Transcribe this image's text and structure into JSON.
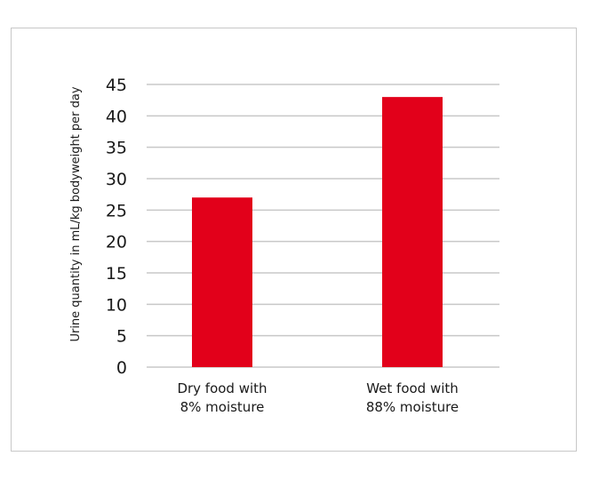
{
  "chart_data": {
    "type": "bar",
    "categories": [
      [
        "Dry food with",
        "8% moisture"
      ],
      [
        "Wet food with",
        "88% moisture"
      ]
    ],
    "values": [
      27,
      43
    ],
    "title": "",
    "xlabel": "",
    "ylabel": "Urine quantity in mL/kg bodyweight per day",
    "ylim": [
      0,
      45
    ],
    "yticks": [
      0,
      5,
      10,
      15,
      20,
      25,
      30,
      35,
      40,
      45
    ],
    "grid": true,
    "legend": "none",
    "bar_color": "#e2001a",
    "grid_color": "#c8c8c8"
  }
}
